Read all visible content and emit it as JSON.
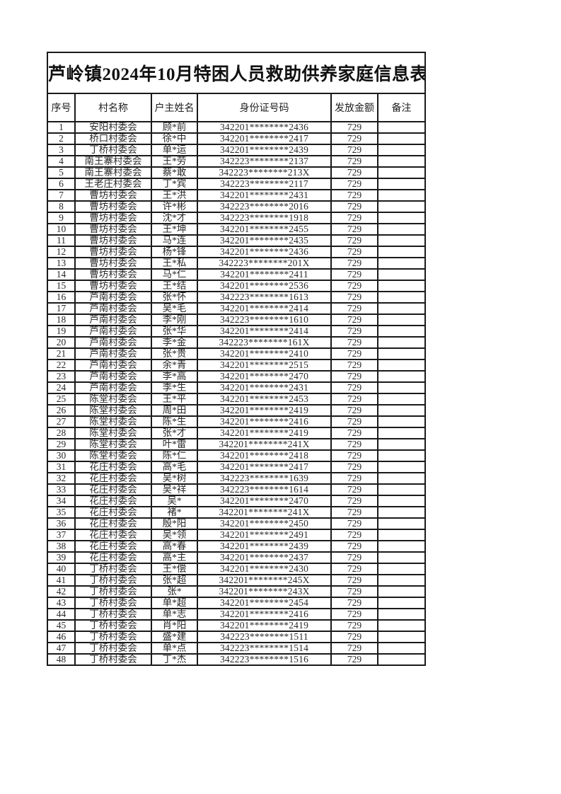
{
  "document": {
    "title": "芦岭镇2024年10月特困人员救助供养家庭信息表"
  },
  "table": {
    "headers": [
      "序号",
      "村名称",
      "户主姓名",
      "身份证号码",
      "发放金额",
      "备注"
    ],
    "rows": [
      [
        "1",
        "安阳村委会",
        "顾*前",
        "342201********2436",
        "729",
        ""
      ],
      [
        "2",
        "桥口村委会",
        "徐*中",
        "342201********2417",
        "729",
        ""
      ],
      [
        "3",
        "丁桥村委会",
        "单*运",
        "342201********2439",
        "729",
        ""
      ],
      [
        "4",
        "南王寨村委会",
        "王*劳",
        "342223********2137",
        "729",
        ""
      ],
      [
        "5",
        "南王寨村委会",
        "蔡*敢",
        "342223********213X",
        "729",
        ""
      ],
      [
        "6",
        "王老庄村委会",
        "丁*宾",
        "342223********2117",
        "729",
        ""
      ],
      [
        "7",
        "曹坊村委会",
        "王*洪",
        "342201********2431",
        "729",
        ""
      ],
      [
        "8",
        "曹坊村委会",
        "许*彬",
        "342223********2016",
        "729",
        ""
      ],
      [
        "9",
        "曹坊村委会",
        "沈*才",
        "342223********1918",
        "729",
        ""
      ],
      [
        "10",
        "曹坊村委会",
        "王*坤",
        "342201********2455",
        "729",
        ""
      ],
      [
        "11",
        "曹坊村委会",
        "马*连",
        "342201********2435",
        "729",
        ""
      ],
      [
        "12",
        "曹坊村委会",
        "杨*锋",
        "342201********2436",
        "729",
        ""
      ],
      [
        "13",
        "曹坊村委会",
        "王*私",
        "342223********201X",
        "729",
        ""
      ],
      [
        "14",
        "曹坊村委会",
        "马*仁",
        "342201********2411",
        "729",
        ""
      ],
      [
        "15",
        "曹坊村委会",
        "王*结",
        "342201********2536",
        "729",
        ""
      ],
      [
        "16",
        "芦南村委会",
        "张*怀",
        "342223********1613",
        "729",
        ""
      ],
      [
        "17",
        "芦南村委会",
        "吴*毛",
        "342201********2414",
        "729",
        ""
      ],
      [
        "18",
        "芦南村委会",
        "李*刚",
        "342223********1610",
        "729",
        ""
      ],
      [
        "19",
        "芦南村委会",
        "张*华",
        "342201********2414",
        "729",
        ""
      ],
      [
        "20",
        "芦南村委会",
        "李*金",
        "342223********161X",
        "729",
        ""
      ],
      [
        "21",
        "芦南村委会",
        "张*贵",
        "342201********2410",
        "729",
        ""
      ],
      [
        "22",
        "芦南村委会",
        "余*青",
        "342201********2515",
        "729",
        ""
      ],
      [
        "23",
        "芦南村委会",
        "李*高",
        "342201********2470",
        "729",
        ""
      ],
      [
        "24",
        "芦南村委会",
        "李*生",
        "342201********2431",
        "729",
        ""
      ],
      [
        "25",
        "陈堂村委会",
        "王*平",
        "342201********2453",
        "729",
        ""
      ],
      [
        "26",
        "陈堂村委会",
        "周*田",
        "342201********2419",
        "729",
        ""
      ],
      [
        "27",
        "陈堂村委会",
        "陈*生",
        "342201********2416",
        "729",
        ""
      ],
      [
        "28",
        "陈堂村委会",
        "张*才",
        "342201********2419",
        "729",
        ""
      ],
      [
        "29",
        "陈堂村委会",
        "叶*雷",
        "342201********241X",
        "729",
        ""
      ],
      [
        "30",
        "陈堂村委会",
        "陈*仁",
        "342201********2418",
        "729",
        ""
      ],
      [
        "31",
        "花庄村委会",
        "高*毛",
        "342201********2417",
        "729",
        ""
      ],
      [
        "32",
        "花庄村委会",
        "吴*树",
        "342223********1639",
        "729",
        ""
      ],
      [
        "33",
        "花庄村委会",
        "吴*祥",
        "342223********1614",
        "729",
        ""
      ],
      [
        "34",
        "花庄村委会",
        "吴*",
        "342201********2470",
        "729",
        ""
      ],
      [
        "35",
        "花庄村委会",
        "褚*",
        "342201********241X",
        "729",
        ""
      ],
      [
        "36",
        "花庄村委会",
        "殷*阳",
        "342201********2450",
        "729",
        ""
      ],
      [
        "37",
        "花庄村委会",
        "吴*领",
        "342201********2491",
        "729",
        ""
      ],
      [
        "38",
        "花庄村委会",
        "高*春",
        "342201********2439",
        "729",
        ""
      ],
      [
        "39",
        "花庄村委会",
        "高*主",
        "342201********2437",
        "729",
        ""
      ],
      [
        "40",
        "丁桥村委会",
        "王*偿",
        "342201********2430",
        "729",
        ""
      ],
      [
        "41",
        "丁桥村委会",
        "张*超",
        "342201********245X",
        "729",
        ""
      ],
      [
        "42",
        "丁桥村委会",
        "张*",
        "342201********243X",
        "729",
        ""
      ],
      [
        "43",
        "丁桥村委会",
        "单*超",
        "342201********2454",
        "729",
        ""
      ],
      [
        "44",
        "丁桥村委会",
        "单*志",
        "342201********2416",
        "729",
        ""
      ],
      [
        "45",
        "丁桥村委会",
        "肖*阳",
        "342201********2419",
        "729",
        ""
      ],
      [
        "46",
        "丁桥村委会",
        "盛*建",
        "342223********1511",
        "729",
        ""
      ],
      [
        "47",
        "丁桥村委会",
        "单*点",
        "342223********1514",
        "729",
        ""
      ],
      [
        "48",
        "丁桥村委会",
        "丁*杰",
        "342223********1516",
        "729",
        ""
      ]
    ]
  }
}
